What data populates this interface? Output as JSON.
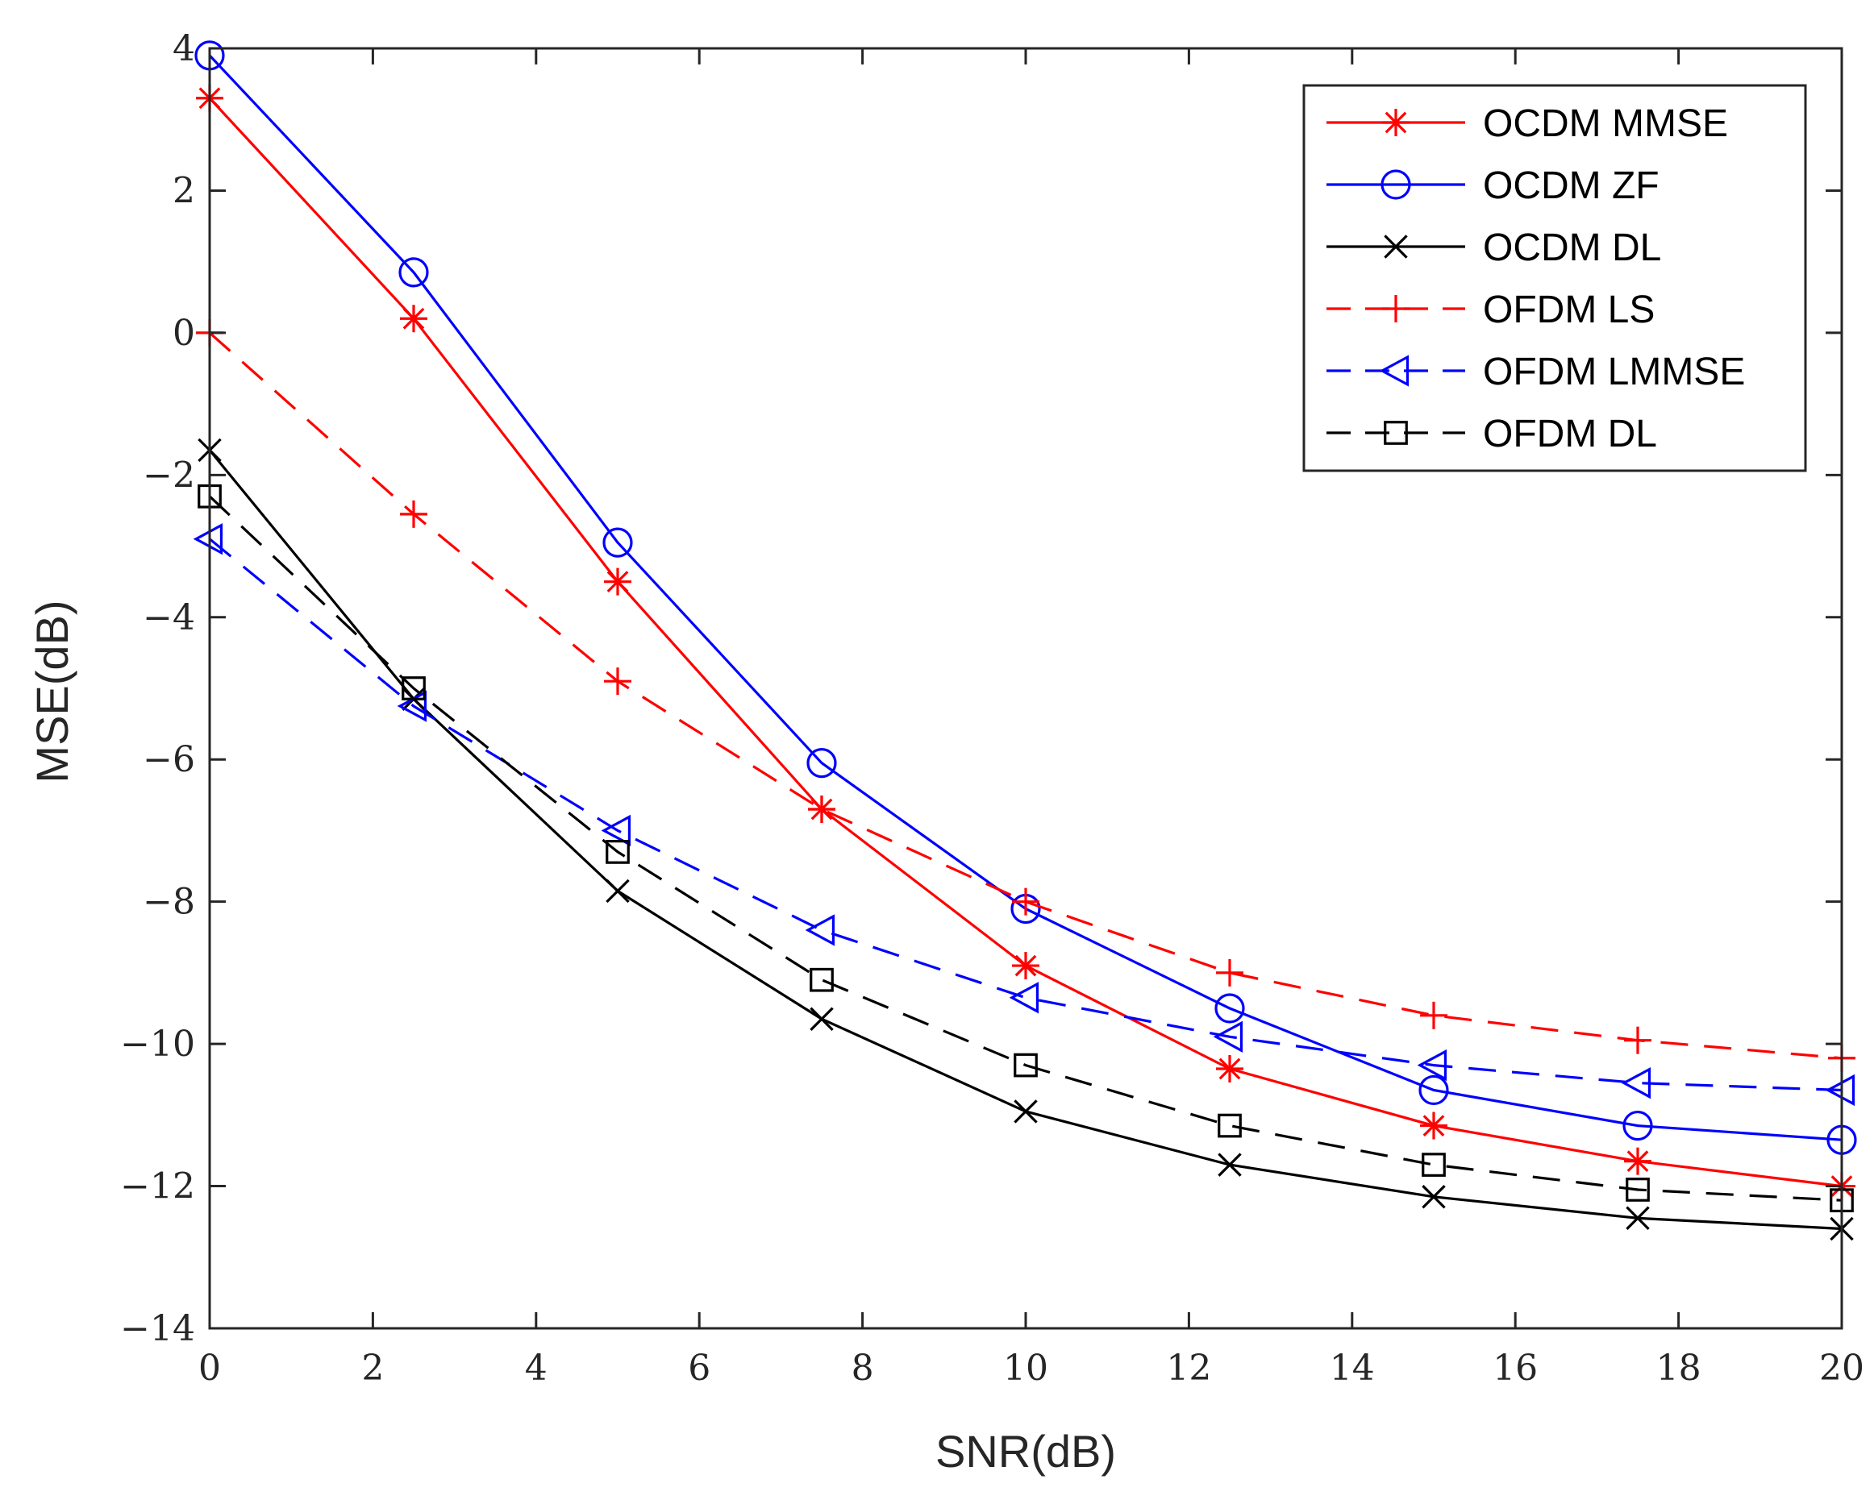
{
  "chart_data": {
    "type": "line",
    "title": "",
    "xlabel": "SNR(dB)",
    "ylabel": "MSE(dB)",
    "xlim": [
      0,
      20
    ],
    "ylim": [
      -14,
      4
    ],
    "xticks": [
      "0",
      "2",
      "4",
      "6",
      "8",
      "10",
      "12",
      "14",
      "16",
      "18",
      "20"
    ],
    "yticks": [
      "4",
      "2",
      "0",
      "−2",
      "−4",
      "−6",
      "−8",
      "−10",
      "−12",
      "−14"
    ],
    "ytick_values": [
      4,
      2,
      0,
      -2,
      -4,
      -6,
      -8,
      -10,
      -12,
      -14
    ],
    "xtick_values": [
      0,
      2,
      4,
      6,
      8,
      10,
      12,
      14,
      16,
      18,
      20
    ],
    "grid": false,
    "legend_position": "top-right",
    "x": [
      0,
      2.5,
      5,
      7.5,
      10,
      12.5,
      15,
      17.5,
      20
    ],
    "series": [
      {
        "name": "OCDM MMSE",
        "color": "#ff0000",
        "line": "solid",
        "marker": "asterisk",
        "values": [
          3.3,
          0.2,
          -3.5,
          -6.7,
          -8.9,
          -10.35,
          -11.15,
          -11.65,
          -12.0
        ]
      },
      {
        "name": "OCDM ZF",
        "color": "#0000ff",
        "line": "solid",
        "marker": "circle",
        "values": [
          3.9,
          0.85,
          -2.95,
          -6.05,
          -8.1,
          -9.5,
          -10.65,
          -11.15,
          -11.35
        ]
      },
      {
        "name": "OCDM DL",
        "color": "#000000",
        "line": "solid",
        "marker": "x",
        "values": [
          -1.65,
          -5.15,
          -7.85,
          -9.65,
          -10.95,
          -11.7,
          -12.15,
          -12.45,
          -12.6
        ]
      },
      {
        "name": "OFDM LS",
        "color": "#ff0000",
        "line": "dashed",
        "marker": "plus",
        "values": [
          0.0,
          -2.55,
          -4.9,
          -6.7,
          -8.0,
          -9.0,
          -9.6,
          -9.95,
          -10.2
        ]
      },
      {
        "name": "OFDM LMMSE",
        "color": "#0000ff",
        "line": "dashed",
        "marker": "triangle-left",
        "values": [
          -2.9,
          -5.25,
          -7.0,
          -8.4,
          -9.35,
          -9.9,
          -10.3,
          -10.55,
          -10.65
        ]
      },
      {
        "name": "OFDM DL",
        "color": "#000000",
        "line": "dashed",
        "marker": "square",
        "values": [
          -2.3,
          -5.0,
          -7.3,
          -9.1,
          -10.3,
          -11.15,
          -11.7,
          -12.05,
          -12.2
        ]
      }
    ]
  }
}
